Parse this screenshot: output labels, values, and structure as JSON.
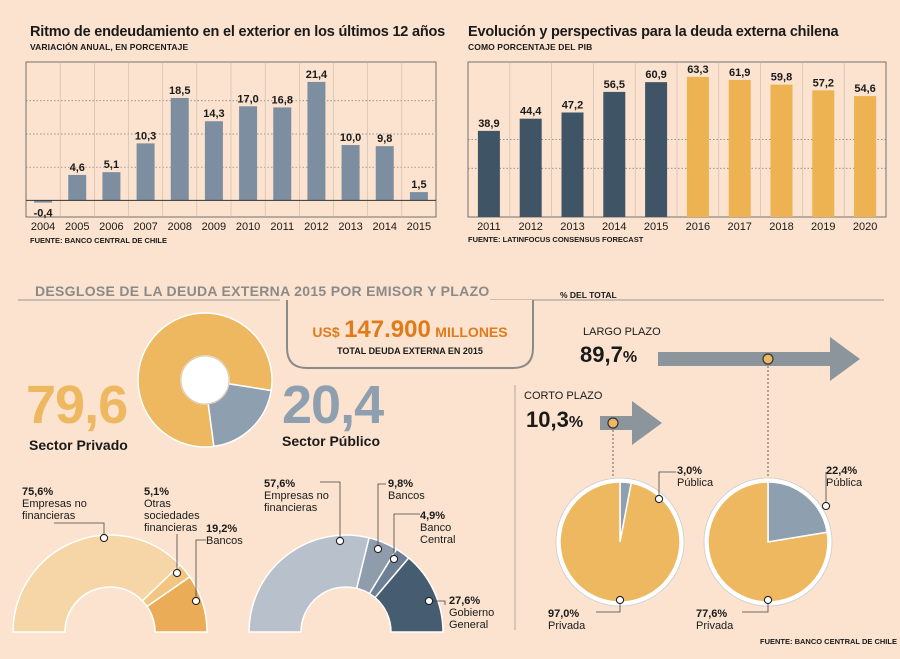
{
  "chart_data": [
    {
      "type": "bar",
      "title": "Ritmo de endeudamiento en el exterior en los últimos 12 años",
      "subtitle": "VARIACIÓN ANUAL, EN PORCENTAJE",
      "source": "FUENTE: BANCO CENTRAL DE CHILE",
      "categories": [
        "2004",
        "2005",
        "2006",
        "2007",
        "2008",
        "2009",
        "2010",
        "2011",
        "2012",
        "2013",
        "2014",
        "2015"
      ],
      "values": [
        -0.4,
        4.6,
        5.1,
        10.3,
        18.5,
        14.3,
        17.0,
        16.8,
        21.4,
        10.0,
        9.8,
        1.5
      ],
      "value_labels": [
        "-0,4",
        "4,6",
        "5,1",
        "10,3",
        "18,5",
        "14,3",
        "17,0",
        "16,8",
        "21,4",
        "10,0",
        "9,8",
        "1,5"
      ],
      "ylim": [
        -3,
        25
      ],
      "color": "#7d8ea1"
    },
    {
      "type": "bar",
      "title": "Evolución y perspectivas para la deuda externa chilena",
      "subtitle": "COMO PORCENTAJE DEL PIB",
      "source": "FUENTE: LATINFOCUS CONSENSUS FORECAST",
      "categories": [
        "2011",
        "2012",
        "2013",
        "2014",
        "2015",
        "2016",
        "2017",
        "2018",
        "2019",
        "2020"
      ],
      "values": [
        38.9,
        44.4,
        47.2,
        56.5,
        60.9,
        63.3,
        61.9,
        59.8,
        57.2,
        54.6
      ],
      "value_labels": [
        "38,9",
        "44,4",
        "47,2",
        "56,5",
        "60,9",
        "63,3",
        "61,9",
        "59,8",
        "57,2",
        "54,6"
      ],
      "ylim": [
        0,
        70
      ],
      "colors": [
        "#3f5566",
        "#3f5566",
        "#3f5566",
        "#3f5566",
        "#3f5566",
        "#edb252",
        "#edb252",
        "#edb252",
        "#edb252",
        "#edb252"
      ]
    },
    {
      "type": "pie",
      "name": "emisor",
      "slices": [
        {
          "label": "Sector Privado",
          "value": 79.6,
          "text": "79,6",
          "color": "#edb860"
        },
        {
          "label": "Sector Público",
          "value": 20.4,
          "text": "20,4",
          "color": "#8e9fb0"
        }
      ]
    },
    {
      "type": "pie",
      "name": "privado-desglose",
      "slices": [
        {
          "pct": "75,6%",
          "label": "Empresas no financieras",
          "value": 75.6,
          "color": "#f6d6a6"
        },
        {
          "pct": "5,1%",
          "label": "Otras sociedades financieras",
          "value": 5.1,
          "color": "#f2c580"
        },
        {
          "pct": "19,2%",
          "label": "Bancos",
          "value": 19.2,
          "color": "#eaac56"
        }
      ]
    },
    {
      "type": "pie",
      "name": "publico-desglose",
      "slices": [
        {
          "pct": "57,6%",
          "label": "Empresas no financieras",
          "value": 57.6,
          "color": "#b8c1cb"
        },
        {
          "pct": "9,8%",
          "label": "Bancos",
          "value": 9.8,
          "color": "#8e9cab"
        },
        {
          "pct": "4,9%",
          "label": "Banco Central",
          "value": 4.9,
          "color": "#6e8194"
        },
        {
          "pct": "27,6%",
          "label": "Gobierno General",
          "value": 27.6,
          "color": "#465c70"
        }
      ]
    },
    {
      "type": "pie",
      "name": "corto-plazo",
      "slices": [
        {
          "pct": "3,0%",
          "label": "Pública",
          "value": 3.0,
          "color": "#8e9fb0"
        },
        {
          "pct": "97,0%",
          "label": "Privada",
          "value": 97.0,
          "color": "#edb860"
        }
      ]
    },
    {
      "type": "pie",
      "name": "largo-plazo",
      "slices": [
        {
          "pct": "22,4%",
          "label": "Pública",
          "value": 22.4,
          "color": "#8e9fb0"
        },
        {
          "pct": "77,6%",
          "label": "Privada",
          "value": 77.6,
          "color": "#edb860"
        }
      ]
    }
  ],
  "section": {
    "title": "DESGLOSE DE LA DEUDA EXTERNA 2015 POR EMISOR Y PLAZO",
    "unit": "% DEL TOTAL",
    "total_prefix": "US$",
    "total_value": "147.900",
    "total_suffix": "MILLONES",
    "total_label": "TOTAL DEUDA EXTERNA EN 2015",
    "source": "FUENTE: BANCO CENTRAL DE CHILE"
  },
  "plazo": {
    "largo_label": "LARGO PLAZO",
    "largo_value": "89,7",
    "corto_label": "CORTO PLAZO",
    "corto_value": "10,3",
    "pct_sign": "%"
  },
  "colors": {
    "background": "#fbe3cf",
    "accent_orange": "#e07b1c",
    "arrow_gray": "#8c949c"
  }
}
